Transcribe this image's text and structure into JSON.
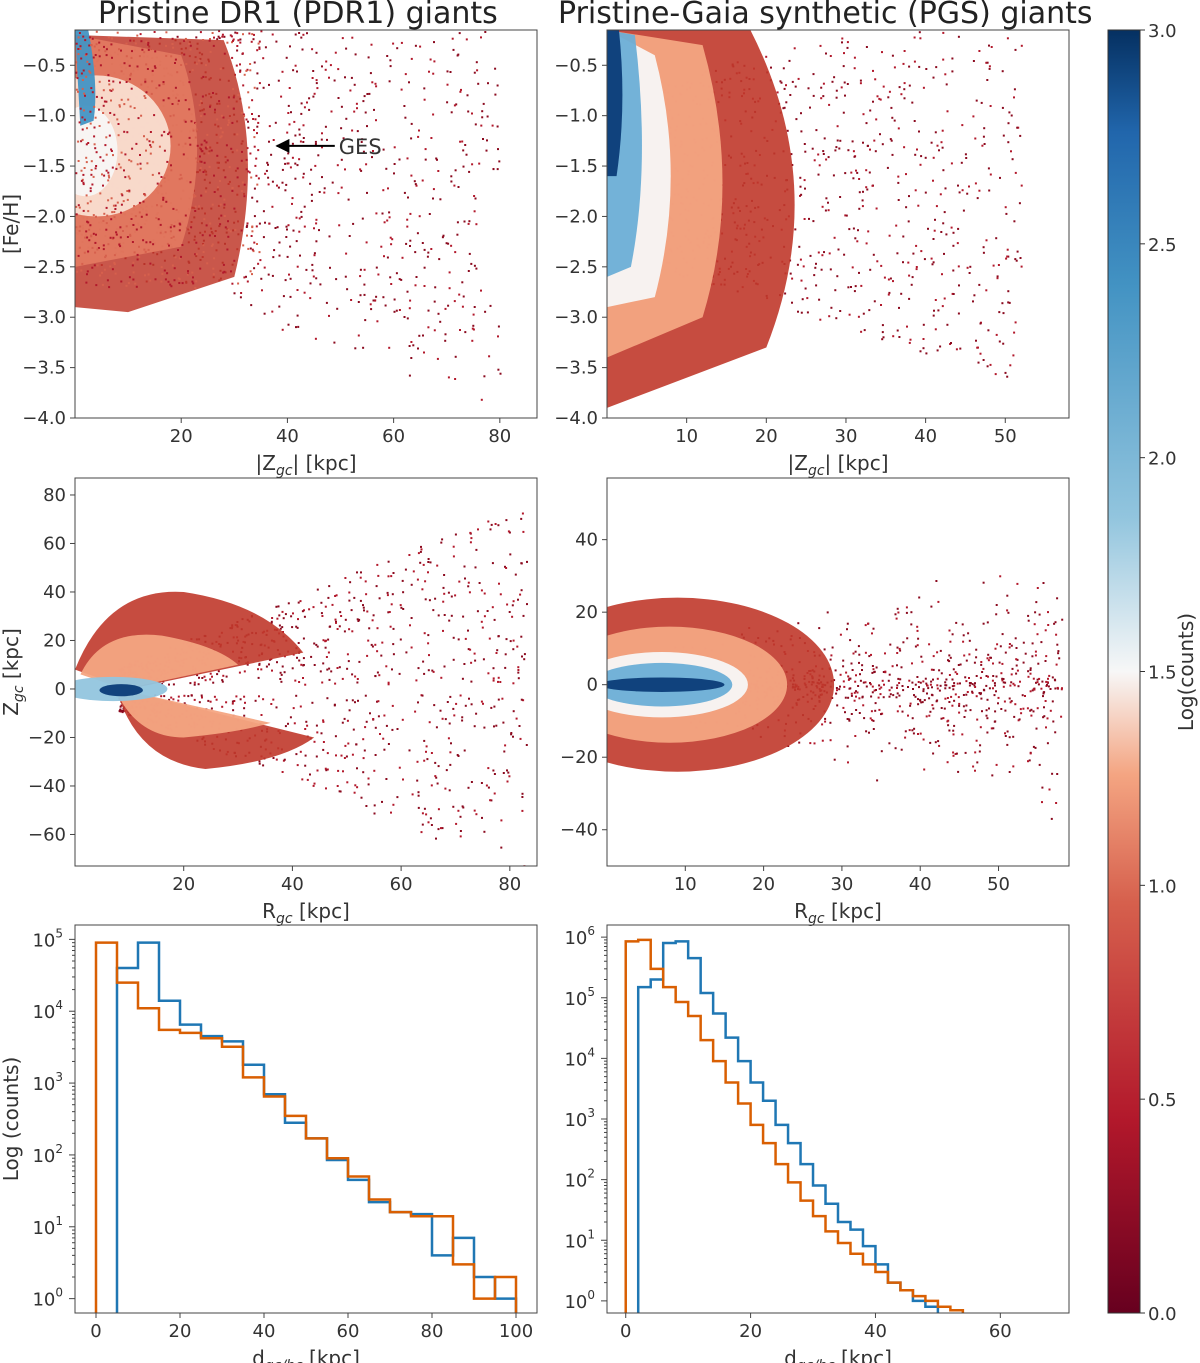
{
  "colors": {
    "pdr1_hist": "#1f77b4",
    "pgs_hist": "#d95f02",
    "cmap_low": "#67001f",
    "cmap_mid": "#f7f7f7",
    "cmap_high": "#053061"
  },
  "titles": {
    "left": "Pristine DR1 (PDR1) giants",
    "right": "Pristine-Gaia synthetic (PGS) giants"
  },
  "colorbar": {
    "label": "Log(counts)",
    "range": [
      0.0,
      3.0
    ],
    "ticks": [
      "0.0",
      "0.5",
      "1.0",
      "1.5",
      "2.0",
      "2.5",
      "3.0"
    ]
  },
  "chart_data": [
    {
      "id": "pdr1_feh_z",
      "type": "heatmap",
      "title": "Pristine DR1 (PDR1) giants",
      "xlabel": "|Z_gc| [kpc]",
      "ylabel": "[Fe/H]",
      "xlim": [
        0,
        87
      ],
      "ylim": [
        -4.0,
        -0.15
      ],
      "xticks": [
        20,
        40,
        60,
        80
      ],
      "yticks": [
        -0.5,
        -1.0,
        -1.5,
        -2.0,
        -2.5,
        -3.0,
        -3.5,
        -4.0
      ],
      "annotation": {
        "text": "GES",
        "x": 38,
        "y": -1.3
      }
    },
    {
      "id": "pgs_feh_z",
      "type": "heatmap",
      "title": "Pristine-Gaia synthetic (PGS) giants",
      "xlabel": "|Z_gc| [kpc]",
      "ylabel": "",
      "xlim": [
        0,
        58
      ],
      "ylim": [
        -4.0,
        -0.15
      ],
      "xticks": [
        10,
        20,
        30,
        40,
        50
      ],
      "yticks": [
        -0.5,
        -1.0,
        -1.5,
        -2.0,
        -2.5,
        -3.0,
        -3.5,
        -4.0
      ]
    },
    {
      "id": "pdr1_r_z",
      "type": "heatmap",
      "xlabel": "R_gc [kpc]",
      "ylabel": "Z_gc [kpc]",
      "xlim": [
        0,
        85
      ],
      "ylim": [
        -73,
        87
      ],
      "xticks": [
        20,
        40,
        60,
        80
      ],
      "yticks": [
        80,
        60,
        40,
        20,
        0,
        -20,
        -40,
        -60
      ]
    },
    {
      "id": "pgs_r_z",
      "type": "heatmap",
      "xlabel": "R_gc [kpc]",
      "ylabel": "",
      "xlim": [
        0,
        59
      ],
      "ylim": [
        -50,
        57
      ],
      "xticks": [
        10,
        20,
        30,
        40,
        50
      ],
      "yticks": [
        40,
        20,
        0,
        -20,
        -40
      ]
    },
    {
      "id": "pdr1_dist_hist",
      "type": "line",
      "xlabel": "d_gc/hc [kpc]",
      "ylabel": "Log (counts)",
      "xlim": [
        -5,
        105
      ],
      "ylim_log10": [
        -0.2,
        5.2
      ],
      "xticks": [
        0,
        20,
        40,
        60,
        80,
        100
      ],
      "yticks_log10": [
        0,
        1,
        2,
        3,
        4,
        5
      ],
      "bin_edges": [
        0,
        5,
        10,
        15,
        20,
        25,
        30,
        35,
        40,
        45,
        50,
        55,
        60,
        65,
        70,
        75,
        80,
        85,
        90,
        95,
        100
      ],
      "series": [
        {
          "name": "galactocentric",
          "color": "#1f77b4",
          "values": [
            null,
            40000,
            90000,
            14000,
            6500,
            4500,
            3800,
            1800,
            700,
            280,
            170,
            85,
            45,
            22,
            16,
            15,
            4,
            7,
            2,
            1
          ]
        },
        {
          "name": "heliocentric",
          "color": "#d95f02",
          "values": [
            90000,
            25000,
            11000,
            5500,
            5000,
            4200,
            3200,
            1200,
            650,
            350,
            170,
            90,
            50,
            24,
            16,
            14,
            14,
            3,
            1,
            2
          ]
        }
      ]
    },
    {
      "id": "pgs_dist_hist",
      "type": "line",
      "xlabel": "d_gc/hc [kpc]",
      "ylabel": "",
      "xlim": [
        -3,
        71
      ],
      "ylim_log10": [
        -0.2,
        6.2
      ],
      "xticks": [
        0,
        20,
        40,
        60
      ],
      "yticks_log10": [
        0,
        1,
        2,
        3,
        4,
        5,
        6
      ],
      "bin_edges": [
        0,
        2,
        4,
        6,
        8,
        10,
        12,
        14,
        16,
        18,
        20,
        22,
        24,
        26,
        28,
        30,
        32,
        34,
        36,
        38,
        40,
        42,
        44,
        46,
        48,
        50,
        52,
        54,
        56,
        58,
        60,
        62,
        64,
        66,
        68
      ],
      "series": [
        {
          "name": "galactocentric",
          "color": "#1f77b4",
          "values": [
            null,
            150000,
            200000,
            800000,
            850000,
            450000,
            120000,
            55000,
            22000,
            9000,
            4000,
            2000,
            800,
            400,
            180,
            80,
            40,
            20,
            15,
            8,
            4,
            2,
            1.5,
            1,
            0.8,
            0.6,
            0.5,
            0.5,
            0.4,
            0.4,
            0.4,
            0.3,
            0.3,
            0.3
          ]
        },
        {
          "name": "heliocentric",
          "color": "#d95f02",
          "values": [
            850000,
            900000,
            300000,
            150000,
            85000,
            50000,
            20000,
            9000,
            4000,
            1800,
            800,
            400,
            180,
            90,
            45,
            25,
            14,
            9,
            6,
            4,
            3,
            2,
            1.5,
            1.2,
            1,
            0.8,
            0.7,
            0.6,
            0.5,
            0.5,
            0.4,
            0.4,
            0.3,
            0.3
          ]
        }
      ]
    }
  ]
}
